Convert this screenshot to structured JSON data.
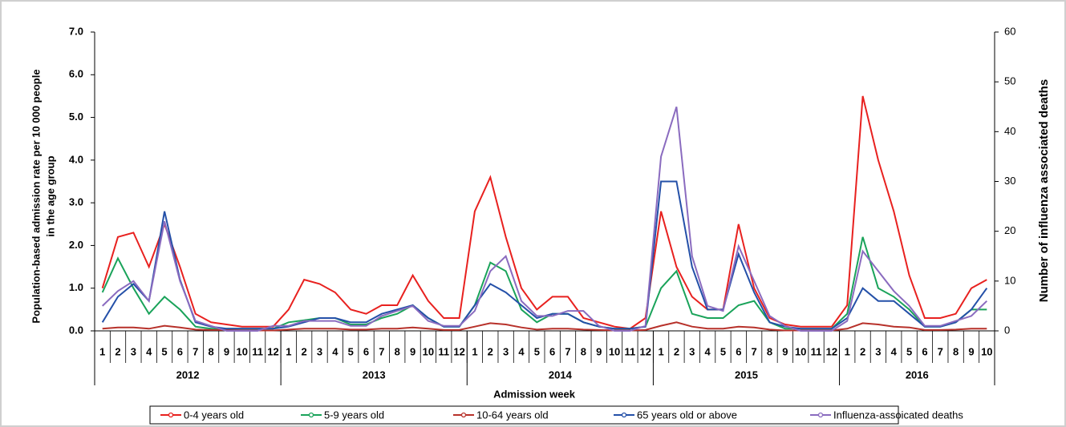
{
  "chart_data": {
    "type": "line",
    "y_label": [
      "Population-based admission rate per 10 000 people",
      "in the age group"
    ],
    "y2_label": "Number of influenza associated deaths",
    "x_label": "Admission week",
    "categories": [
      "1",
      "2",
      "3",
      "4",
      "5",
      "6",
      "7",
      "8",
      "9",
      "10",
      "11",
      "12",
      "1",
      "2",
      "3",
      "4",
      "5",
      "6",
      "7",
      "8",
      "9",
      "10",
      "11",
      "12",
      "1",
      "2",
      "3",
      "4",
      "5",
      "6",
      "7",
      "8",
      "9",
      "10",
      "11",
      "12",
      "1",
      "2",
      "3",
      "4",
      "5",
      "6",
      "7",
      "8",
      "9",
      "10",
      "11",
      "12",
      "1",
      "2",
      "3",
      "4",
      "5",
      "6",
      "7",
      "8",
      "9",
      "10"
    ],
    "years": [
      "2012",
      "2013",
      "2014",
      "2015",
      "2016"
    ],
    "ylim": [
      0,
      7
    ],
    "yticks": [
      {
        "value": 0,
        "label": "0.0"
      },
      {
        "value": 1,
        "label": "1.0"
      },
      {
        "value": 2,
        "label": "2.0"
      },
      {
        "value": 3,
        "label": "3.0"
      },
      {
        "value": 4,
        "label": "4.0"
      },
      {
        "value": 5,
        "label": "5.0"
      },
      {
        "value": 6,
        "label": "6.0"
      },
      {
        "value": 7,
        "label": "7.0"
      }
    ],
    "y2lim": [
      0,
      60
    ],
    "y2ticks": [
      0,
      10,
      20,
      30,
      40,
      50,
      60
    ],
    "series": [
      {
        "name": "0-4 years old",
        "color": "#e8211f",
        "values": [
          1.0,
          2.2,
          2.3,
          1.5,
          2.5,
          1.5,
          0.4,
          0.2,
          0.15,
          0.1,
          0.1,
          0.1,
          0.5,
          1.2,
          1.1,
          0.9,
          0.5,
          0.4,
          0.6,
          0.6,
          1.3,
          0.7,
          0.3,
          0.3,
          2.8,
          3.6,
          2.2,
          1.0,
          0.5,
          0.8,
          0.8,
          0.3,
          0.2,
          0.1,
          0.05,
          0.3,
          2.8,
          1.5,
          0.8,
          0.5,
          0.5,
          2.5,
          1.0,
          0.3,
          0.15,
          0.1,
          0.1,
          0.1,
          0.6,
          5.5,
          4.0,
          2.8,
          1.3,
          0.3,
          0.3,
          0.4,
          1.0,
          1.2
        ]
      },
      {
        "name": "5-9 years old",
        "color": "#1aa35a",
        "values": [
          0.9,
          1.7,
          1.0,
          0.4,
          0.8,
          0.5,
          0.1,
          0.05,
          0.05,
          0.05,
          0.05,
          0.05,
          0.2,
          0.25,
          0.3,
          0.3,
          0.15,
          0.15,
          0.3,
          0.4,
          0.6,
          0.3,
          0.1,
          0.1,
          0.6,
          1.6,
          1.4,
          0.5,
          0.2,
          0.4,
          0.4,
          0.2,
          0.1,
          0.05,
          0.05,
          0.1,
          1.0,
          1.4,
          0.4,
          0.3,
          0.3,
          0.6,
          0.7,
          0.2,
          0.05,
          0.05,
          0.05,
          0.05,
          0.4,
          2.2,
          1.0,
          0.8,
          0.5,
          0.1,
          0.1,
          0.2,
          0.5,
          0.5
        ]
      },
      {
        "name": "10-64 years old",
        "color": "#b7312a",
        "values": [
          0.05,
          0.08,
          0.08,
          0.05,
          0.12,
          0.08,
          0.03,
          0.02,
          0.02,
          0.01,
          0.01,
          0.01,
          0.03,
          0.05,
          0.05,
          0.05,
          0.03,
          0.03,
          0.05,
          0.05,
          0.08,
          0.05,
          0.02,
          0.02,
          0.1,
          0.18,
          0.15,
          0.08,
          0.03,
          0.05,
          0.05,
          0.03,
          0.02,
          0.01,
          0.01,
          0.02,
          0.12,
          0.2,
          0.1,
          0.05,
          0.05,
          0.1,
          0.08,
          0.03,
          0.01,
          0.01,
          0.01,
          0.01,
          0.05,
          0.18,
          0.15,
          0.1,
          0.08,
          0.02,
          0.02,
          0.03,
          0.05,
          0.05
        ]
      },
      {
        "name": "65 years old or above",
        "color": "#2450a8",
        "values": [
          0.2,
          0.8,
          1.1,
          0.7,
          2.8,
          1.2,
          0.2,
          0.1,
          0.05,
          0.05,
          0.05,
          0.05,
          0.1,
          0.2,
          0.3,
          0.3,
          0.2,
          0.2,
          0.4,
          0.5,
          0.6,
          0.3,
          0.1,
          0.1,
          0.6,
          1.1,
          0.9,
          0.6,
          0.3,
          0.4,
          0.4,
          0.2,
          0.1,
          0.05,
          0.05,
          0.1,
          3.5,
          3.5,
          1.5,
          0.5,
          0.5,
          1.8,
          0.9,
          0.2,
          0.1,
          0.05,
          0.05,
          0.05,
          0.3,
          1.0,
          0.7,
          0.7,
          0.4,
          0.1,
          0.1,
          0.2,
          0.5,
          1.0
        ]
      },
      {
        "name": "Influenza-assoicated deaths",
        "color": "#8a6bbf",
        "axis": "y2",
        "values": [
          5,
          8,
          10,
          6,
          22,
          10,
          2,
          1,
          0,
          0,
          0,
          1,
          1,
          2,
          2,
          2,
          1,
          1,
          3,
          4,
          5,
          2,
          1,
          1,
          4,
          12,
          15,
          6,
          3,
          3,
          4,
          4,
          1,
          0,
          0,
          1,
          35,
          45,
          15,
          5,
          4,
          17,
          10,
          3,
          1,
          0,
          0,
          0,
          2,
          16,
          12,
          8,
          5,
          1,
          1,
          2,
          3,
          6
        ]
      }
    ]
  }
}
